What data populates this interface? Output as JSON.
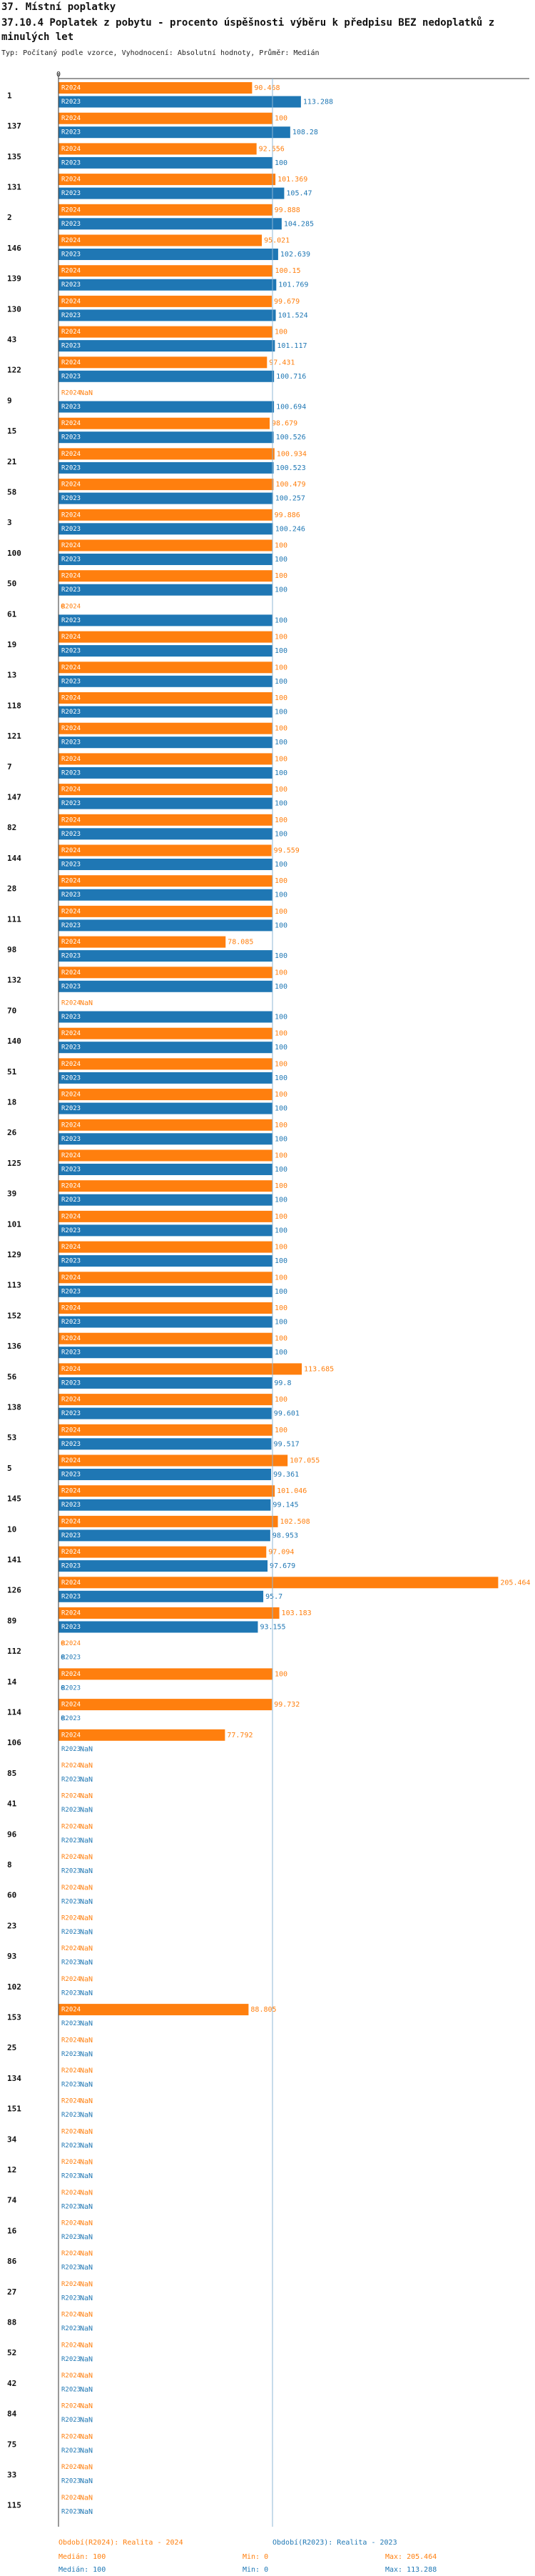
{
  "chart_data": {
    "type": "bar",
    "orientation": "horizontal",
    "section": "37. Místní poplatky",
    "title": "37.10.4 Poplatek z pobytu - procento úspěšnosti výběru k předpisu BEZ nedoplatků z minulých let",
    "subtitle": "Typ: Počítaný podle vzorce, Vyhodnocení: Absolutní hodnoty, Průměr: Medián",
    "categories": [
      "1",
      "137",
      "135",
      "131",
      "2",
      "146",
      "139",
      "130",
      "43",
      "122",
      "9",
      "15",
      "21",
      "58",
      "3",
      "100",
      "50",
      "61",
      "19",
      "13",
      "118",
      "121",
      "7",
      "147",
      "82",
      "144",
      "28",
      "111",
      "98",
      "132",
      "70",
      "140",
      "51",
      "18",
      "26",
      "125",
      "39",
      "101",
      "129",
      "113",
      "152",
      "136",
      "56",
      "138",
      "53",
      "5",
      "145",
      "10",
      "141",
      "126",
      "89",
      "112",
      "14",
      "114",
      "106",
      "85",
      "41",
      "96",
      "8",
      "60",
      "23",
      "93",
      "102",
      "153",
      "25",
      "134",
      "151",
      "34",
      "12",
      "74",
      "16",
      "86",
      "27",
      "88",
      "52",
      "42",
      "84",
      "75",
      "33",
      "115"
    ],
    "series": [
      {
        "name": "R2024",
        "legend": "Období(R2024): Realita - 2024",
        "color": "#ff7f0e",
        "stats": [
          "Medián: 100",
          "Min: 0",
          "Max: 205.464"
        ],
        "values": [
          90.468,
          100,
          92.556,
          101.369,
          99.888,
          95.021,
          100.15,
          99.679,
          100,
          97.431,
          null,
          98.679,
          100.934,
          100.479,
          99.886,
          100,
          100,
          0,
          100,
          100,
          100,
          100,
          100,
          100,
          100,
          99.559,
          100,
          100,
          78.085,
          100,
          null,
          100,
          100,
          100,
          100,
          100,
          100,
          100,
          100,
          100,
          100,
          100,
          113.685,
          100,
          100,
          107.055,
          101.046,
          102.508,
          97.094,
          205.464,
          103.183,
          0,
          100,
          99.732,
          77.792,
          null,
          null,
          null,
          null,
          null,
          null,
          null,
          null,
          88.805,
          null,
          null,
          null,
          null,
          null,
          null,
          null,
          null,
          null,
          null,
          null,
          null,
          null,
          null,
          null,
          null
        ],
        "value_labels": [
          "90.468",
          "100",
          "92.556",
          "101.369",
          "99.888",
          "95.021",
          "100.15",
          "99.679",
          "100",
          "97.431",
          "NaN",
          "98.679",
          "100.934",
          "100.479",
          "99.886",
          "100",
          "100",
          "0",
          "100",
          "100",
          "100",
          "100",
          "100",
          "100",
          "100",
          "99.559",
          "100",
          "100",
          "78.085",
          "100",
          "NaN",
          "100",
          "100",
          "100",
          "100",
          "100",
          "100",
          "100",
          "100",
          "100",
          "100",
          "100",
          "113.685",
          "100",
          "100",
          "107.055",
          "101.046",
          "102.508",
          "97.094",
          "205.464",
          "103.183",
          "0",
          "100",
          "99.732",
          "77.792",
          "NaN",
          "NaN",
          "NaN",
          "NaN",
          "NaN",
          "NaN",
          "NaN",
          "NaN",
          "88.805",
          "NaN",
          "NaN",
          "NaN",
          "NaN",
          "NaN",
          "NaN",
          "NaN",
          "NaN",
          "NaN",
          "NaN",
          "NaN",
          "NaN",
          "NaN",
          "NaN",
          "NaN",
          "NaN"
        ]
      },
      {
        "name": "R2023",
        "legend": "Období(R2023): Realita - 2023",
        "color": "#1f77b4",
        "stats": [
          "Medián: 100",
          "Min: 0",
          "Max: 113.288"
        ],
        "values": [
          113.288,
          108.28,
          100,
          105.47,
          104.285,
          102.639,
          101.769,
          101.524,
          101.117,
          100.716,
          100.694,
          100.526,
          100.523,
          100.257,
          100.246,
          100,
          100,
          100,
          100,
          100,
          100,
          100,
          100,
          100,
          100,
          100,
          100,
          100,
          100,
          100,
          100,
          100,
          100,
          100,
          100,
          100,
          100,
          100,
          100,
          100,
          100,
          100,
          99.8,
          99.601,
          99.517,
          99.361,
          99.145,
          98.953,
          97.679,
          95.7,
          93.155,
          0,
          0,
          0,
          null,
          null,
          null,
          null,
          null,
          null,
          null,
          null,
          null,
          null,
          null,
          null,
          null,
          null,
          null,
          null,
          null,
          null,
          null,
          null,
          null,
          null,
          null,
          null,
          null,
          null
        ],
        "value_labels": [
          "113.288",
          "108.28",
          "100",
          "105.47",
          "104.285",
          "102.639",
          "101.769",
          "101.524",
          "101.117",
          "100.716",
          "100.694",
          "100.526",
          "100.523",
          "100.257",
          "100.246",
          "100",
          "100",
          "100",
          "100",
          "100",
          "100",
          "100",
          "100",
          "100",
          "100",
          "100",
          "100",
          "100",
          "100",
          "100",
          "100",
          "100",
          "100",
          "100",
          "100",
          "100",
          "100",
          "100",
          "100",
          "100",
          "100",
          "100",
          "99.8",
          "99.601",
          "99.517",
          "99.361",
          "99.145",
          "98.953",
          "97.679",
          "95.7",
          "93.155",
          "0",
          "0",
          "0",
          "NaN",
          "NaN",
          "NaN",
          "NaN",
          "NaN",
          "NaN",
          "NaN",
          "NaN",
          "NaN",
          "NaN",
          "NaN",
          "NaN",
          "NaN",
          "NaN",
          "NaN",
          "NaN",
          "NaN",
          "NaN",
          "NaN",
          "NaN",
          "NaN",
          "NaN",
          "NaN",
          "NaN",
          "NaN",
          "NaN"
        ]
      }
    ],
    "xlim": [
      0,
      210
    ],
    "xticks": [
      0
    ],
    "reference_line": 100
  }
}
